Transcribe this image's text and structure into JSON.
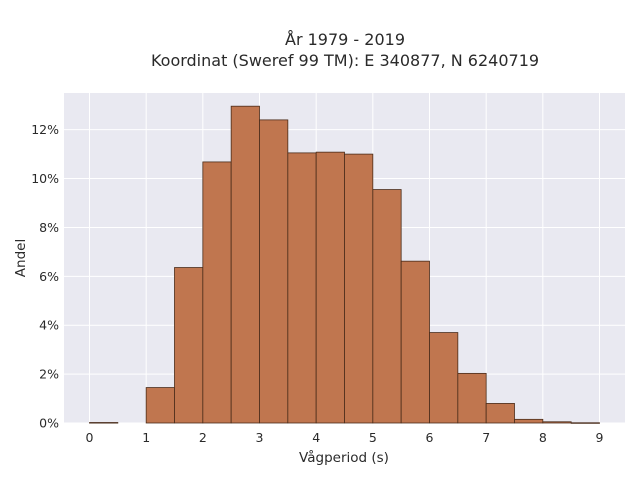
{
  "chart_data": {
    "type": "bar",
    "title": "År 1979 - 2019",
    "subtitle": "Koordinat (Sweref 99 TM): E 340877, N 6240719",
    "xlabel": "Vågperiod (s)",
    "ylabel": "Andel",
    "bin_width": 0.5,
    "bins_start": [
      0,
      0.5,
      1,
      1.5,
      2,
      2.5,
      3,
      3.5,
      4,
      4.5,
      5,
      5.5,
      6,
      6.5,
      7,
      7.5,
      8,
      8.5
    ],
    "values": [
      0.0002,
      0,
      0.0145,
      0.0636,
      0.1068,
      0.1296,
      0.124,
      0.1105,
      0.1108,
      0.11,
      0.0955,
      0.0662,
      0.037,
      0.0203,
      0.008,
      0.0015,
      0.0005,
      0.0001
    ],
    "xlim": [
      -0.45,
      9.45
    ],
    "ylim": [
      0,
      0.135
    ],
    "xticks": [
      "0",
      "1",
      "2",
      "3",
      "4",
      "5",
      "6",
      "7",
      "8",
      "9"
    ],
    "yticks": [
      "0%",
      "2%",
      "4%",
      "6%",
      "8%",
      "10%",
      "12%"
    ],
    "grid": true,
    "colors": {
      "bar_fill": "#c0764f",
      "bar_edge": "#4a2c1a",
      "plot_bg": "#e9e9f1",
      "grid": "#ffffff"
    }
  }
}
